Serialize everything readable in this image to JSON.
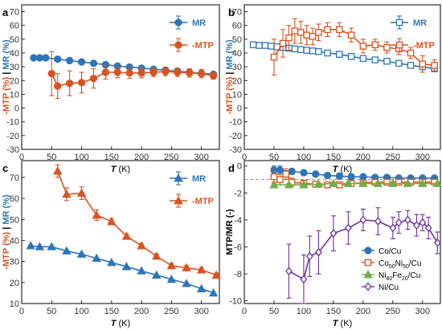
{
  "colors": {
    "mr": "#2E75B6",
    "mtp": "#D9531E",
    "co": "#2E75B6",
    "coni": "#D9531E",
    "nife": "#70AD47",
    "ni": "#7030A0",
    "dash": "#999999"
  },
  "chart_data": [
    {
      "panel": "a",
      "type": "line",
      "xlabel_italic": "T",
      "xlabel_unit": " (K)",
      "ylabel_parts": [
        "-MTP (%)",
        " | ",
        "MR (%)"
      ],
      "xlim": [
        0,
        330
      ],
      "ylim": [
        -30,
        75
      ],
      "xticks": [
        "0",
        "50",
        "100",
        "150",
        "200",
        "250",
        "300"
      ],
      "yticks": [
        "-30",
        "-20",
        "-10",
        "0",
        "10",
        "20",
        "30",
        "40",
        "50",
        "60",
        "70"
      ],
      "legend_position": "top-right",
      "series": [
        {
          "name": "MR",
          "marker": "circle",
          "filled": true,
          "color": "mr",
          "x": [
            20,
            30,
            40,
            60,
            80,
            100,
            120,
            140,
            160,
            180,
            200,
            220,
            240,
            260,
            280,
            300,
            320
          ],
          "y": [
            36.5,
            36.5,
            36.5,
            35.5,
            34.5,
            33.5,
            32.5,
            31.5,
            30.5,
            29.8,
            29,
            28.2,
            27.5,
            26.8,
            26,
            25.2,
            24.5
          ]
        },
        {
          "name": "-MTP",
          "marker": "circle",
          "filled": true,
          "color": "mtp",
          "x": [
            50,
            60,
            80,
            100,
            120,
            140,
            160,
            180,
            200,
            220,
            240,
            260,
            280,
            300,
            320
          ],
          "y": [
            25,
            16,
            18,
            18.5,
            21.5,
            26,
            26,
            25.5,
            25.5,
            26,
            26.5,
            26,
            25.5,
            25,
            23.5
          ],
          "err": [
            16,
            9,
            9,
            7.5,
            7,
            5,
            4,
            4,
            3.5,
            3,
            3,
            3,
            3,
            3,
            2.5
          ]
        }
      ]
    },
    {
      "panel": "b",
      "type": "line",
      "xlabel_italic": "T",
      "xlabel_unit": " (K)",
      "ylabel_parts": [
        "-MTP (%)",
        " | ",
        "MR (%)"
      ],
      "xlim": [
        0,
        330
      ],
      "ylim": [
        -30,
        75
      ],
      "xticks": [
        "0",
        "50",
        "100",
        "150",
        "200",
        "250",
        "300"
      ],
      "yticks": [
        "-30",
        "-20",
        "-10",
        "0",
        "10",
        "20",
        "30",
        "40",
        "50",
        "60",
        "70"
      ],
      "legend_position": "top-right",
      "series": [
        {
          "name": "MR",
          "marker": "square",
          "filled": false,
          "color": "mr",
          "x": [
            15,
            25,
            35,
            45,
            55,
            65,
            75,
            85,
            95,
            105,
            115,
            125,
            140,
            160,
            180,
            200,
            220,
            240,
            260,
            280,
            300,
            320
          ],
          "y": [
            46,
            45.5,
            45.5,
            45,
            44.5,
            44,
            43.5,
            43,
            42.5,
            42,
            41.5,
            41,
            40,
            39,
            37.5,
            36,
            35,
            34,
            32.5,
            31,
            30,
            28.5
          ]
        },
        {
          "name": "-MTP",
          "marker": "square",
          "filled": false,
          "color": "mtp",
          "x": [
            50,
            65,
            75,
            85,
            95,
            105,
            115,
            125,
            140,
            160,
            180,
            200,
            220,
            240,
            260,
            280,
            300,
            320
          ],
          "y": [
            37,
            47,
            51,
            56,
            55,
            53,
            52,
            55,
            57,
            57,
            53,
            45,
            46,
            44,
            43,
            40,
            32,
            31
          ],
          "err": [
            13,
            10,
            9,
            9,
            8,
            7,
            6,
            6,
            5,
            5,
            5,
            5,
            4,
            4,
            4,
            4,
            6,
            4
          ]
        }
      ]
    },
    {
      "panel": "c",
      "type": "line",
      "xlabel_italic": "T",
      "xlabel_unit": " (K)",
      "ylabel_parts": [
        "-MTP (%)",
        " | ",
        "MR (%)"
      ],
      "xlim": [
        0,
        330
      ],
      "ylim": [
        10,
        78
      ],
      "xticks": [
        "0",
        "50",
        "100",
        "150",
        "200",
        "250",
        "300"
      ],
      "yticks": [
        "10",
        "20",
        "30",
        "40",
        "50",
        "60",
        "70"
      ],
      "legend_position": "top-right",
      "series": [
        {
          "name": "MR",
          "marker": "triangle",
          "filled": true,
          "color": "mr",
          "x": [
            15,
            30,
            50,
            75,
            100,
            125,
            150,
            175,
            200,
            225,
            250,
            275,
            300,
            320
          ],
          "y": [
            37.5,
            37,
            37,
            35,
            33.5,
            31.5,
            29.5,
            27.5,
            25.5,
            23.5,
            21.5,
            19.5,
            17,
            15
          ]
        },
        {
          "name": "-MTP",
          "marker": "triangle",
          "filled": true,
          "color": "mtp",
          "x": [
            60,
            75,
            100,
            125,
            150,
            175,
            200,
            225,
            250,
            275,
            300,
            325
          ],
          "y": [
            73,
            62,
            62.5,
            52,
            49,
            42,
            37.5,
            32.5,
            28,
            27,
            26,
            23.5
          ],
          "err": [
            3,
            3,
            3,
            2.5,
            1.5,
            1,
            1,
            1,
            1,
            1,
            1,
            1
          ]
        }
      ]
    },
    {
      "panel": "d",
      "type": "line",
      "xlabel_italic": "T",
      "xlabel_unit": " (K)",
      "ylabel": "MTP/MR (-)",
      "xlim": [
        0,
        330
      ],
      "ylim": [
        -10.2,
        0.4
      ],
      "xticks": [
        "0",
        "50",
        "100",
        "150",
        "200",
        "250",
        "300"
      ],
      "yticks": [
        "-10",
        "-8",
        "-6",
        "-4",
        "-2",
        "0"
      ],
      "reference_line": -1,
      "legend_position": "bottom-right",
      "series": [
        {
          "name": "Co/Cu",
          "legend_parts": [
            {
              "t": "Co/Cu"
            }
          ],
          "marker": "circle",
          "filled": true,
          "color": "co",
          "x": [
            50,
            60,
            80,
            100,
            120,
            140,
            160,
            180,
            200,
            220,
            240,
            260,
            280,
            300,
            320
          ],
          "y": [
            -0.3,
            -0.3,
            -0.4,
            -0.5,
            -0.6,
            -0.7,
            -0.75,
            -0.8,
            -0.8,
            -0.85,
            -0.85,
            -0.9,
            -0.9,
            -0.9,
            -0.9
          ],
          "err": [
            0.3,
            0.3,
            0.2,
            0.2,
            0.2,
            0.15,
            0.15,
            0.15,
            0.1,
            0.1,
            0.1,
            0.1,
            0.1,
            0.1,
            0.1
          ]
        },
        {
          "name": "Co50Ni50/Cu",
          "legend_parts": [
            {
              "t": "Co"
            },
            {
              "t": "50",
              "sub": true
            },
            {
              "t": "Ni"
            },
            {
              "t": "50",
              "sub": true
            },
            {
              "t": "/Cu"
            }
          ],
          "marker": "square",
          "filled": false,
          "color": "coni",
          "x": [
            50,
            60,
            70,
            80,
            100,
            120,
            140,
            160,
            180,
            200,
            220,
            240,
            260,
            280,
            300,
            320
          ],
          "y": [
            -0.8,
            -1.0,
            -0.6,
            -1.2,
            -1.3,
            -1.35,
            -1.4,
            -1.4,
            -1.3,
            -1.25,
            -1.2,
            -1.2,
            -1.2,
            -1.2,
            -1.2,
            -1.2
          ],
          "err": [
            0.4,
            0.4,
            0.4,
            0.3,
            0.25,
            0.2,
            0.2,
            0.2,
            0.2,
            0.15,
            0.15,
            0.15,
            0.15,
            0.15,
            0.15,
            0.15
          ]
        },
        {
          "name": "Ni80Fe20/Cu",
          "legend_parts": [
            {
              "t": "Ni"
            },
            {
              "t": "80",
              "sub": true
            },
            {
              "t": "Fe"
            },
            {
              "t": "20",
              "sub": true
            },
            {
              "t": "/Cu"
            }
          ],
          "marker": "triangle",
          "filled": true,
          "color": "nife",
          "x": [
            50,
            75,
            100,
            125,
            150,
            175,
            200,
            225,
            250,
            275,
            300,
            325
          ],
          "y": [
            -1.4,
            -1.4,
            -1.4,
            -1.35,
            -1.3,
            -1.3,
            -1.3,
            -1.3,
            -1.3,
            -1.3,
            -1.3,
            -1.3
          ],
          "err": [
            0.1,
            0.1,
            0.1,
            0.1,
            0.1,
            0.1,
            0.1,
            0.1,
            0.1,
            0.1,
            0.1,
            0.1
          ]
        },
        {
          "name": "Ni/Cu",
          "legend_parts": [
            {
              "t": "Ni/Cu"
            }
          ],
          "marker": "diamond",
          "filled": false,
          "color": "ni",
          "x": [
            75,
            100,
            110,
            125,
            150,
            175,
            200,
            225,
            250,
            260,
            275,
            290,
            300,
            310,
            325
          ],
          "y": [
            -7.8,
            -8.4,
            -6.7,
            -6.4,
            -5.0,
            -4.6,
            -4.0,
            -4.1,
            -4.6,
            -4.2,
            -4.0,
            -4.4,
            -4.2,
            -4.6,
            -5.7
          ],
          "err": [
            2.0,
            1.8,
            1.5,
            1.6,
            1.3,
            1.2,
            0.8,
            1.0,
            0.8,
            0.8,
            0.7,
            0.8,
            0.6,
            0.8,
            0.8
          ]
        }
      ]
    }
  ]
}
